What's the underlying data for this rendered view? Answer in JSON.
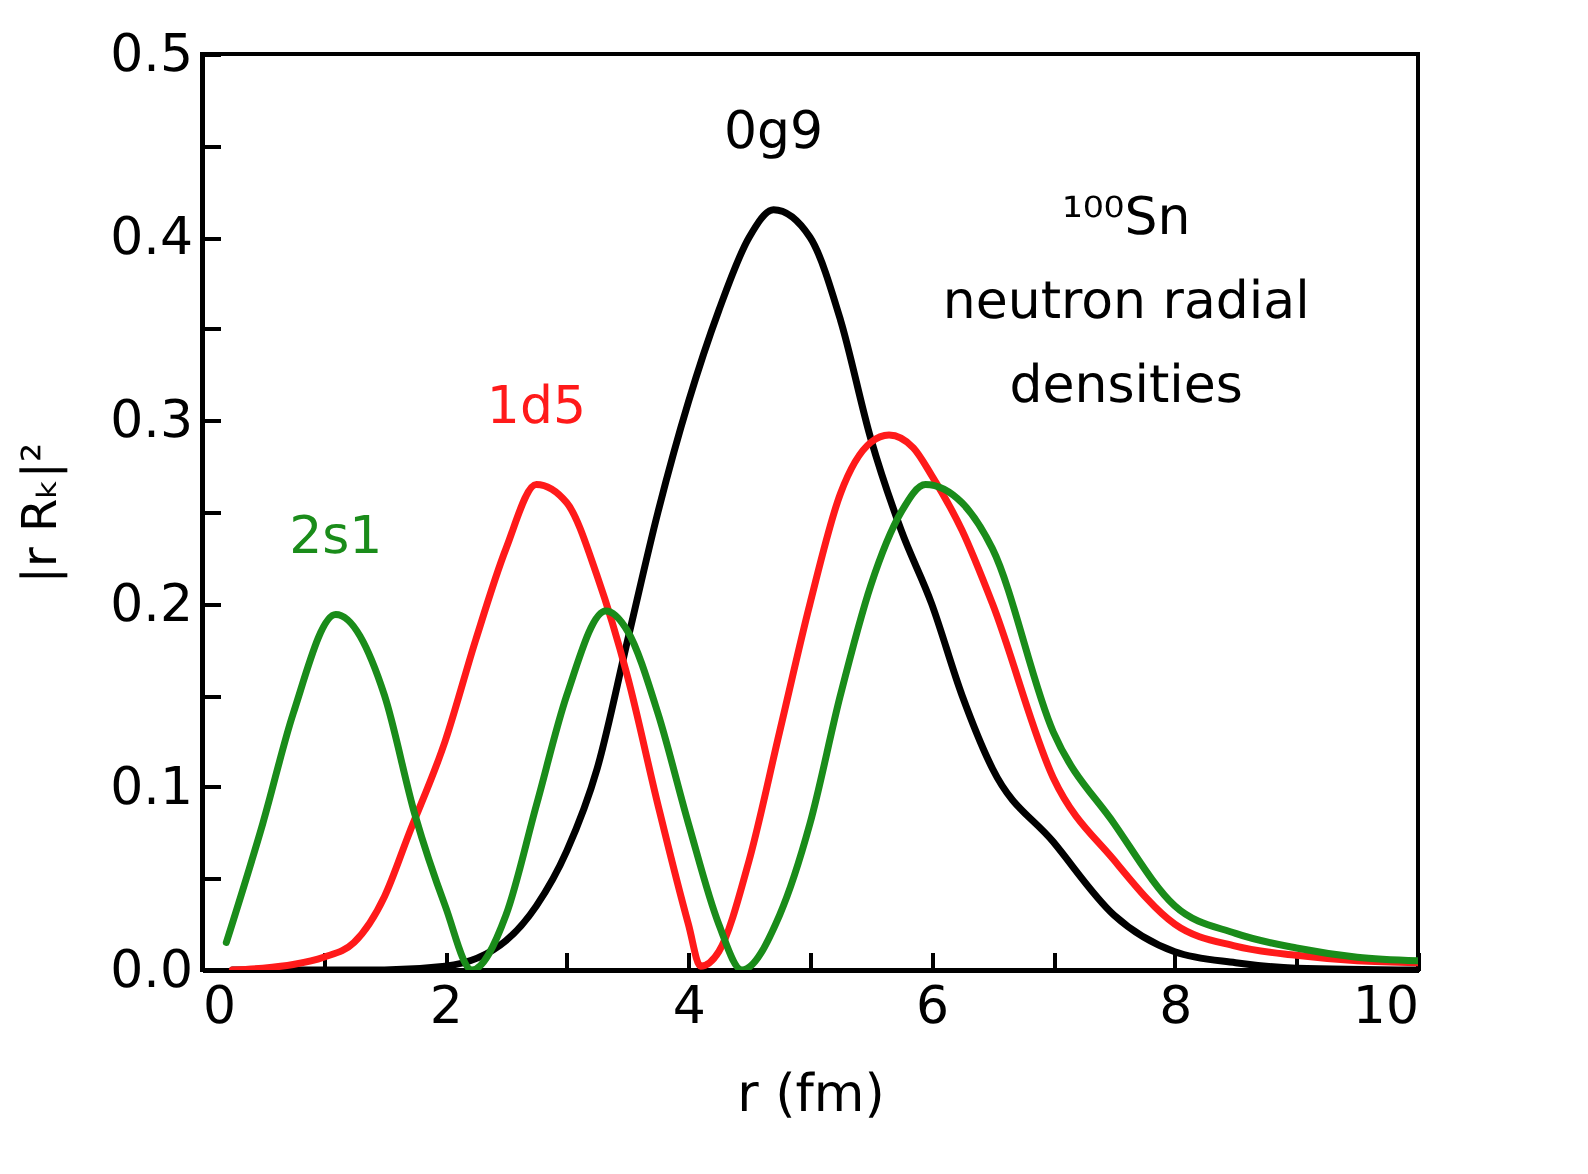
{
  "chart_data": {
    "type": "line",
    "xlabel": "r (fm)",
    "ylabel": "|r Rₖ|²",
    "annotations": [
      "¹⁰⁰Sn",
      "neutron radial",
      "densities"
    ],
    "xlim": [
      0,
      10
    ],
    "xticks": [
      0,
      {
        "value": 1,
        "label": null
      },
      2,
      {
        "value": 3,
        "label": null
      },
      4,
      {
        "value": 5,
        "label": null
      },
      6,
      {
        "value": 7,
        "label": null
      },
      8,
      {
        "value": 9,
        "label": null
      },
      10
    ],
    "ylim": [
      0,
      0.5
    ],
    "yticks": [
      {
        "value": 0,
        "label": "0.0"
      },
      {
        "value": 0.05,
        "label": null
      },
      0.1,
      {
        "value": 0.15,
        "label": null
      },
      0.2,
      {
        "value": 0.25,
        "label": null
      },
      0.3,
      {
        "value": 0.35,
        "label": null
      },
      0.4,
      {
        "value": 0.45,
        "label": null
      },
      0.5
    ],
    "grid": false,
    "legend": false,
    "marker": "none",
    "line_style": "solid",
    "series": [
      {
        "name": "0g9",
        "color": "#000000",
        "x": [
          0.25,
          1,
          1.5,
          2,
          2.5,
          2.75,
          3,
          3.25,
          3.5,
          3.75,
          4,
          4.25,
          4.5,
          4.7,
          5,
          5.25,
          5.5,
          5.75,
          6,
          6.25,
          6.5,
          7,
          7.5,
          8,
          8.5,
          9,
          10
        ],
        "values": [
          0,
          0,
          0,
          0.002,
          0.016,
          0.035,
          0.065,
          0.11,
          0.18,
          0.25,
          0.31,
          0.36,
          0.4,
          0.415,
          0.4,
          0.355,
          0.29,
          0.24,
          0.2,
          0.15,
          0.11,
          0.07,
          0.03,
          0.01,
          0.004,
          0.001,
          0
        ]
      },
      {
        "name": "1d5",
        "color": "#ff1a1a",
        "x": [
          0.25,
          0.5,
          0.75,
          1,
          1.25,
          1.5,
          1.7,
          2,
          2.25,
          2.5,
          2.75,
          3,
          3.25,
          3.5,
          3.75,
          4,
          4.1,
          4.25,
          4.5,
          4.75,
          5,
          5.25,
          5.5,
          5.65,
          5.85,
          6,
          6.25,
          6.5,
          7,
          7.5,
          8,
          8.5,
          9,
          9.5,
          10
        ],
        "values": [
          0,
          0.001,
          0.003,
          0.007,
          0.015,
          0.04,
          0.074,
          0.125,
          0.18,
          0.23,
          0.265,
          0.255,
          0.215,
          0.16,
          0.09,
          0.025,
          0.002,
          0.01,
          0.06,
          0.13,
          0.2,
          0.26,
          0.288,
          0.292,
          0.285,
          0.27,
          0.24,
          0.2,
          0.105,
          0.06,
          0.025,
          0.013,
          0.008,
          0.005,
          0.004
        ]
      },
      {
        "name": "2s1",
        "color": "#1a8c1a",
        "x": [
          0.2,
          0.5,
          0.75,
          1.1,
          1.5,
          1.75,
          2,
          2.22,
          2.5,
          2.75,
          3,
          3.32,
          3.5,
          3.75,
          4,
          4.25,
          4.44,
          4.75,
          5,
          5.25,
          5.5,
          5.75,
          5.95,
          6.25,
          6.5,
          7,
          7.5,
          8,
          8.5,
          9,
          9.5,
          10
        ],
        "values": [
          0.015,
          0.08,
          0.14,
          0.194,
          0.15,
          0.085,
          0.035,
          0,
          0.03,
          0.09,
          0.15,
          0.196,
          0.185,
          0.14,
          0.08,
          0.025,
          0,
          0.03,
          0.08,
          0.15,
          0.21,
          0.25,
          0.265,
          0.255,
          0.23,
          0.13,
          0.08,
          0.035,
          0.02,
          0.012,
          0.007,
          0.005
        ]
      }
    ]
  }
}
